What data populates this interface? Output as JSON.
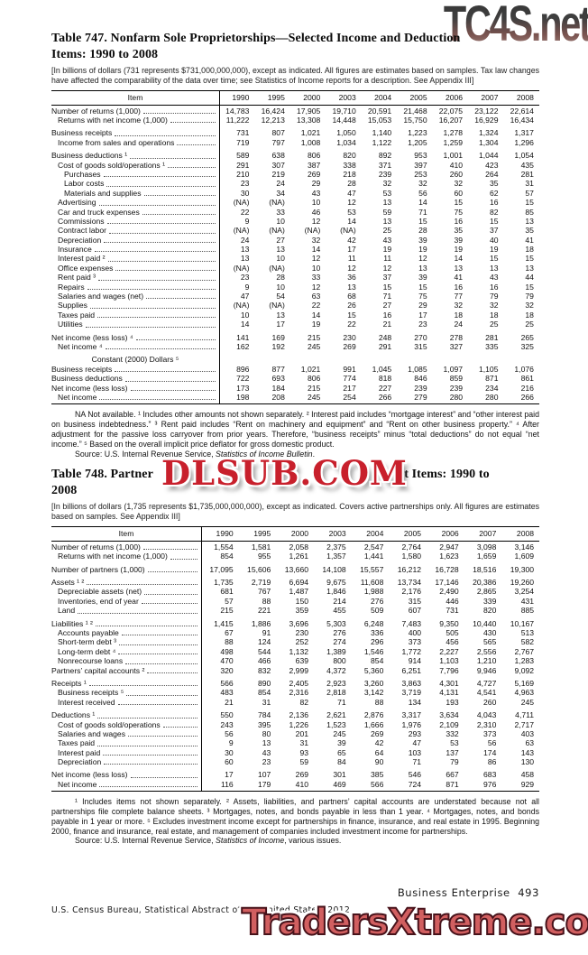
{
  "watermarks": {
    "top_right": "TC4S.net",
    "middle": "DLSUB.COM",
    "bottom": "TradersXtreme.com"
  },
  "table747": {
    "title_line1": "Table 747. Nonfarm Sole Proprietorships—Selected Income and Deduction",
    "title_line2": "Items: 1990 to 2008",
    "bracket_note": "[In billions of dollars (731 represents $731,000,000,000), except as indicated. All figures are estimates based on samples. Tax law changes have affected the comparability of the data over time; see Statistics of Income reports for a description. See Appendix III]",
    "footnotes": "NA Not available. ¹ Includes other amounts not shown separately. ² Interest paid includes “mortgage interest” and “other interest paid on business indebtedness.” ³ Rent paid includes “Rent on machinery and equipment” and “Rent on other business property.” ⁴ After adjustment for the passive loss carryover from prior years. Therefore, “business receipts” minus “total deductions” do not equal “net income.” ⁵ Based on the overall implicit price deflator for gross domestic product.",
    "source_prefix": "Source: U.S. Internal Revenue Service, ",
    "source_italic": "Statistics of Income Bulletin",
    "source_suffix": "."
  },
  "table748": {
    "title_prefix": "Table 748. Partner",
    "title_suffix": "et Items: 1990 to",
    "title_line2": "2008",
    "bracket_note": "[In billions of dollars (1,735 represents $1,735,000,000,000), except as indicated. Covers active partnerships only. All figures are estimates based on samples. See Appendix III]",
    "footnotes": "¹ Includes items not shown separately. ² Assets, liabilities, and partners’ capital accounts are understated because not all partnerships file complete balance sheets. ³ Mortgages, notes, and bonds payable in less than 1 year. ⁴ Mortgages, notes, and bonds payable in 1 year or more. ⁵ Excludes investment income except for partnerships in finance, insurance, and real estate in 1995. Beginning 2000, finance and insurance, real estate, and management of companies included investment income for partnerships.",
    "source_prefix": "Source: U.S. Internal Revenue Service, ",
    "source_italic": "Statistics of Income",
    "source_suffix": ", various issues."
  },
  "tables": {
    "t747": {
      "columns": [
        "Item",
        "1990",
        "1995",
        "2000",
        "2003",
        "2004",
        "2005",
        "2006",
        "2007",
        "2008"
      ],
      "rows": [
        {
          "label": "Number of returns (1,000)",
          "indent": 0,
          "values": [
            "14,783",
            "16,424",
            "17,905",
            "19,710",
            "20,591",
            "21,468",
            "22,075",
            "23,122",
            "22,614"
          ]
        },
        {
          "label": "Returns with net income (1,000)",
          "indent": 1,
          "values": [
            "11,222",
            "12,213",
            "13,308",
            "14,448",
            "15,053",
            "15,750",
            "16,207",
            "16,929",
            "16,434"
          ]
        },
        {
          "label": "Business receipts",
          "indent": 0,
          "gap": true,
          "values": [
            "731",
            "807",
            "1,021",
            "1,050",
            "1,140",
            "1,223",
            "1,278",
            "1,324",
            "1,317"
          ]
        },
        {
          "label": "Income from sales and operations",
          "indent": 1,
          "values": [
            "719",
            "797",
            "1,008",
            "1,034",
            "1,122",
            "1,205",
            "1,259",
            "1,304",
            "1,296"
          ]
        },
        {
          "label": "Business deductions ¹",
          "indent": 0,
          "gap": true,
          "values": [
            "589",
            "638",
            "806",
            "820",
            "892",
            "953",
            "1,001",
            "1,044",
            "1,054"
          ]
        },
        {
          "label": "Cost of goods sold/operations ¹",
          "indent": 1,
          "values": [
            "291",
            "307",
            "387",
            "338",
            "371",
            "397",
            "410",
            "423",
            "435"
          ]
        },
        {
          "label": "Purchases",
          "indent": 2,
          "values": [
            "210",
            "219",
            "269",
            "218",
            "239",
            "253",
            "260",
            "264",
            "281"
          ]
        },
        {
          "label": "Labor costs",
          "indent": 2,
          "values": [
            "23",
            "24",
            "29",
            "28",
            "32",
            "32",
            "32",
            "35",
            "31"
          ]
        },
        {
          "label": "Materials and supplies",
          "indent": 2,
          "values": [
            "30",
            "34",
            "43",
            "47",
            "53",
            "56",
            "60",
            "62",
            "57"
          ]
        },
        {
          "label": "Advertising",
          "indent": 1,
          "values": [
            "(NA)",
            "(NA)",
            "10",
            "12",
            "13",
            "14",
            "15",
            "16",
            "15"
          ]
        },
        {
          "label": "Car and truck expenses",
          "indent": 1,
          "values": [
            "22",
            "33",
            "46",
            "53",
            "59",
            "71",
            "75",
            "82",
            "85"
          ]
        },
        {
          "label": "Commissions",
          "indent": 1,
          "values": [
            "9",
            "10",
            "12",
            "14",
            "13",
            "15",
            "16",
            "15",
            "13"
          ]
        },
        {
          "label": "Contract labor",
          "indent": 1,
          "values": [
            "(NA)",
            "(NA)",
            "(NA)",
            "(NA)",
            "25",
            "28",
            "35",
            "37",
            "35"
          ]
        },
        {
          "label": "Depreciation",
          "indent": 1,
          "values": [
            "24",
            "27",
            "32",
            "42",
            "43",
            "39",
            "39",
            "40",
            "41"
          ]
        },
        {
          "label": "Insurance",
          "indent": 1,
          "values": [
            "13",
            "13",
            "14",
            "17",
            "19",
            "19",
            "19",
            "19",
            "18"
          ]
        },
        {
          "label": "Interest paid ²",
          "indent": 1,
          "values": [
            "13",
            "10",
            "12",
            "11",
            "11",
            "12",
            "14",
            "15",
            "15"
          ]
        },
        {
          "label": "Office expenses",
          "indent": 1,
          "values": [
            "(NA)",
            "(NA)",
            "10",
            "12",
            "12",
            "13",
            "13",
            "13",
            "13"
          ]
        },
        {
          "label": "Rent paid ³",
          "indent": 1,
          "values": [
            "23",
            "28",
            "33",
            "36",
            "37",
            "39",
            "41",
            "43",
            "44"
          ]
        },
        {
          "label": "Repairs",
          "indent": 1,
          "values": [
            "9",
            "10",
            "12",
            "13",
            "15",
            "15",
            "16",
            "16",
            "15"
          ]
        },
        {
          "label": "Salaries and wages (net)",
          "indent": 1,
          "values": [
            "47",
            "54",
            "63",
            "68",
            "71",
            "75",
            "77",
            "79",
            "79"
          ]
        },
        {
          "label": "Supplies",
          "indent": 1,
          "values": [
            "(NA)",
            "(NA)",
            "22",
            "26",
            "27",
            "29",
            "32",
            "32",
            "32"
          ]
        },
        {
          "label": "Taxes paid",
          "indent": 1,
          "values": [
            "10",
            "13",
            "14",
            "15",
            "16",
            "17",
            "18",
            "18",
            "18"
          ]
        },
        {
          "label": "Utilities",
          "indent": 1,
          "values": [
            "14",
            "17",
            "19",
            "22",
            "21",
            "23",
            "24",
            "25",
            "25"
          ]
        },
        {
          "label": "Net income (less loss) ⁴",
          "indent": 0,
          "gap": true,
          "values": [
            "141",
            "169",
            "215",
            "230",
            "248",
            "270",
            "278",
            "281",
            "265"
          ]
        },
        {
          "label": "Net income ⁴",
          "indent": 1,
          "values": [
            "162",
            "192",
            "245",
            "269",
            "291",
            "315",
            "327",
            "335",
            "325"
          ]
        },
        {
          "label": "Constant (2000) Dollars ⁵",
          "subheader": true,
          "gap": true
        },
        {
          "label": "Business receipts",
          "indent": 0,
          "values": [
            "896",
            "877",
            "1,021",
            "991",
            "1,045",
            "1,085",
            "1,097",
            "1,105",
            "1,076"
          ]
        },
        {
          "label": "Business deductions",
          "indent": 0,
          "values": [
            "722",
            "693",
            "806",
            "774",
            "818",
            "846",
            "859",
            "871",
            "861"
          ]
        },
        {
          "label": "Net income (less loss)",
          "indent": 0,
          "values": [
            "173",
            "184",
            "215",
            "217",
            "227",
            "239",
            "239",
            "234",
            "216"
          ]
        },
        {
          "label": "Net income",
          "indent": 1,
          "values": [
            "198",
            "208",
            "245",
            "254",
            "266",
            "279",
            "280",
            "280",
            "266"
          ]
        }
      ]
    },
    "t748": {
      "columns": [
        "Item",
        "1990",
        "1995",
        "2000",
        "2003",
        "2004",
        "2005",
        "2006",
        "2007",
        "2008"
      ],
      "rows": [
        {
          "label": "Number of returns (1,000)",
          "indent": 0,
          "values": [
            "1,554",
            "1,581",
            "2,058",
            "2,375",
            "2,547",
            "2,764",
            "2,947",
            "3,098",
            "3,146"
          ]
        },
        {
          "label": "Returns with net income (1,000)",
          "indent": 1,
          "values": [
            "854",
            "955",
            "1,261",
            "1,357",
            "1,441",
            "1,580",
            "1,623",
            "1,659",
            "1,609"
          ]
        },
        {
          "label": "Number of partners (1,000)",
          "indent": 0,
          "gap": true,
          "values": [
            "17,095",
            "15,606",
            "13,660",
            "14,108",
            "15,557",
            "16,212",
            "16,728",
            "18,516",
            "19,300"
          ]
        },
        {
          "label": "Assets ¹ ²",
          "indent": 0,
          "gap": true,
          "values": [
            "1,735",
            "2,719",
            "6,694",
            "9,675",
            "11,608",
            "13,734",
            "17,146",
            "20,386",
            "19,260"
          ]
        },
        {
          "label": "Depreciable assets (net)",
          "indent": 1,
          "values": [
            "681",
            "767",
            "1,487",
            "1,846",
            "1,988",
            "2,176",
            "2,490",
            "2,865",
            "3,254"
          ]
        },
        {
          "label": "Inventories, end of year",
          "indent": 1,
          "values": [
            "57",
            "88",
            "150",
            "214",
            "276",
            "315",
            "446",
            "339",
            "431"
          ]
        },
        {
          "label": "Land",
          "indent": 1,
          "values": [
            "215",
            "221",
            "359",
            "455",
            "509",
            "607",
            "731",
            "820",
            "885"
          ]
        },
        {
          "label": "Liabilities ¹ ²",
          "indent": 0,
          "gap": true,
          "values": [
            "1,415",
            "1,886",
            "3,696",
            "5,303",
            "6,248",
            "7,483",
            "9,350",
            "10,440",
            "10,167"
          ]
        },
        {
          "label": "Accounts payable",
          "indent": 1,
          "values": [
            "67",
            "91",
            "230",
            "276",
            "336",
            "400",
            "505",
            "430",
            "513"
          ]
        },
        {
          "label": "Short-term debt ³",
          "indent": 1,
          "values": [
            "88",
            "124",
            "252",
            "274",
            "296",
            "373",
            "456",
            "565",
            "582"
          ]
        },
        {
          "label": "Long-term debt ⁴",
          "indent": 1,
          "values": [
            "498",
            "544",
            "1,132",
            "1,389",
            "1,546",
            "1,772",
            "2,227",
            "2,556",
            "2,767"
          ]
        },
        {
          "label": "Nonrecourse loans",
          "indent": 1,
          "values": [
            "470",
            "466",
            "639",
            "800",
            "854",
            "914",
            "1,103",
            "1,210",
            "1,283"
          ]
        },
        {
          "label": "Partners’ capital accounts ²",
          "indent": 0,
          "values": [
            "320",
            "832",
            "2,999",
            "4,372",
            "5,360",
            "6,251",
            "7,796",
            "9,946",
            "9,092"
          ]
        },
        {
          "label": "Receipts ¹",
          "indent": 0,
          "gap": true,
          "values": [
            "566",
            "890",
            "2,405",
            "2,923",
            "3,260",
            "3,863",
            "4,301",
            "4,727",
            "5,169"
          ]
        },
        {
          "label": "Business receipts ⁵",
          "indent": 1,
          "values": [
            "483",
            "854",
            "2,316",
            "2,818",
            "3,142",
            "3,719",
            "4,131",
            "4,541",
            "4,963"
          ]
        },
        {
          "label": "Interest received",
          "indent": 1,
          "values": [
            "21",
            "31",
            "82",
            "71",
            "88",
            "134",
            "193",
            "260",
            "245"
          ]
        },
        {
          "label": "Deductions ¹",
          "indent": 0,
          "gap": true,
          "values": [
            "550",
            "784",
            "2,136",
            "2,621",
            "2,876",
            "3,317",
            "3,634",
            "4,043",
            "4,711"
          ]
        },
        {
          "label": "Cost of goods sold/operations",
          "indent": 1,
          "values": [
            "243",
            "395",
            "1,226",
            "1,523",
            "1,666",
            "1,976",
            "2,109",
            "2,310",
            "2,717"
          ]
        },
        {
          "label": "Salaries and wages",
          "indent": 1,
          "values": [
            "56",
            "80",
            "201",
            "245",
            "269",
            "293",
            "332",
            "373",
            "403"
          ]
        },
        {
          "label": "Taxes paid",
          "indent": 1,
          "values": [
            "9",
            "13",
            "31",
            "39",
            "42",
            "47",
            "53",
            "56",
            "63"
          ]
        },
        {
          "label": "Interest paid",
          "indent": 1,
          "values": [
            "30",
            "43",
            "93",
            "65",
            "64",
            "103",
            "137",
            "174",
            "143"
          ]
        },
        {
          "label": "Depreciation",
          "indent": 1,
          "values": [
            "60",
            "23",
            "59",
            "84",
            "90",
            "71",
            "79",
            "86",
            "130"
          ]
        },
        {
          "label": "Net income (less loss)",
          "indent": 0,
          "gap": true,
          "values": [
            "17",
            "107",
            "269",
            "301",
            "385",
            "546",
            "667",
            "683",
            "458"
          ]
        },
        {
          "label": "Net income",
          "indent": 1,
          "values": [
            "116",
            "179",
            "410",
            "469",
            "566",
            "724",
            "871",
            "976",
            "929"
          ]
        }
      ]
    }
  },
  "footer": {
    "right": "Business Enterprise  493",
    "left": "U.S. Census Bureau, Statistical Abstract of the United States: 2012"
  }
}
